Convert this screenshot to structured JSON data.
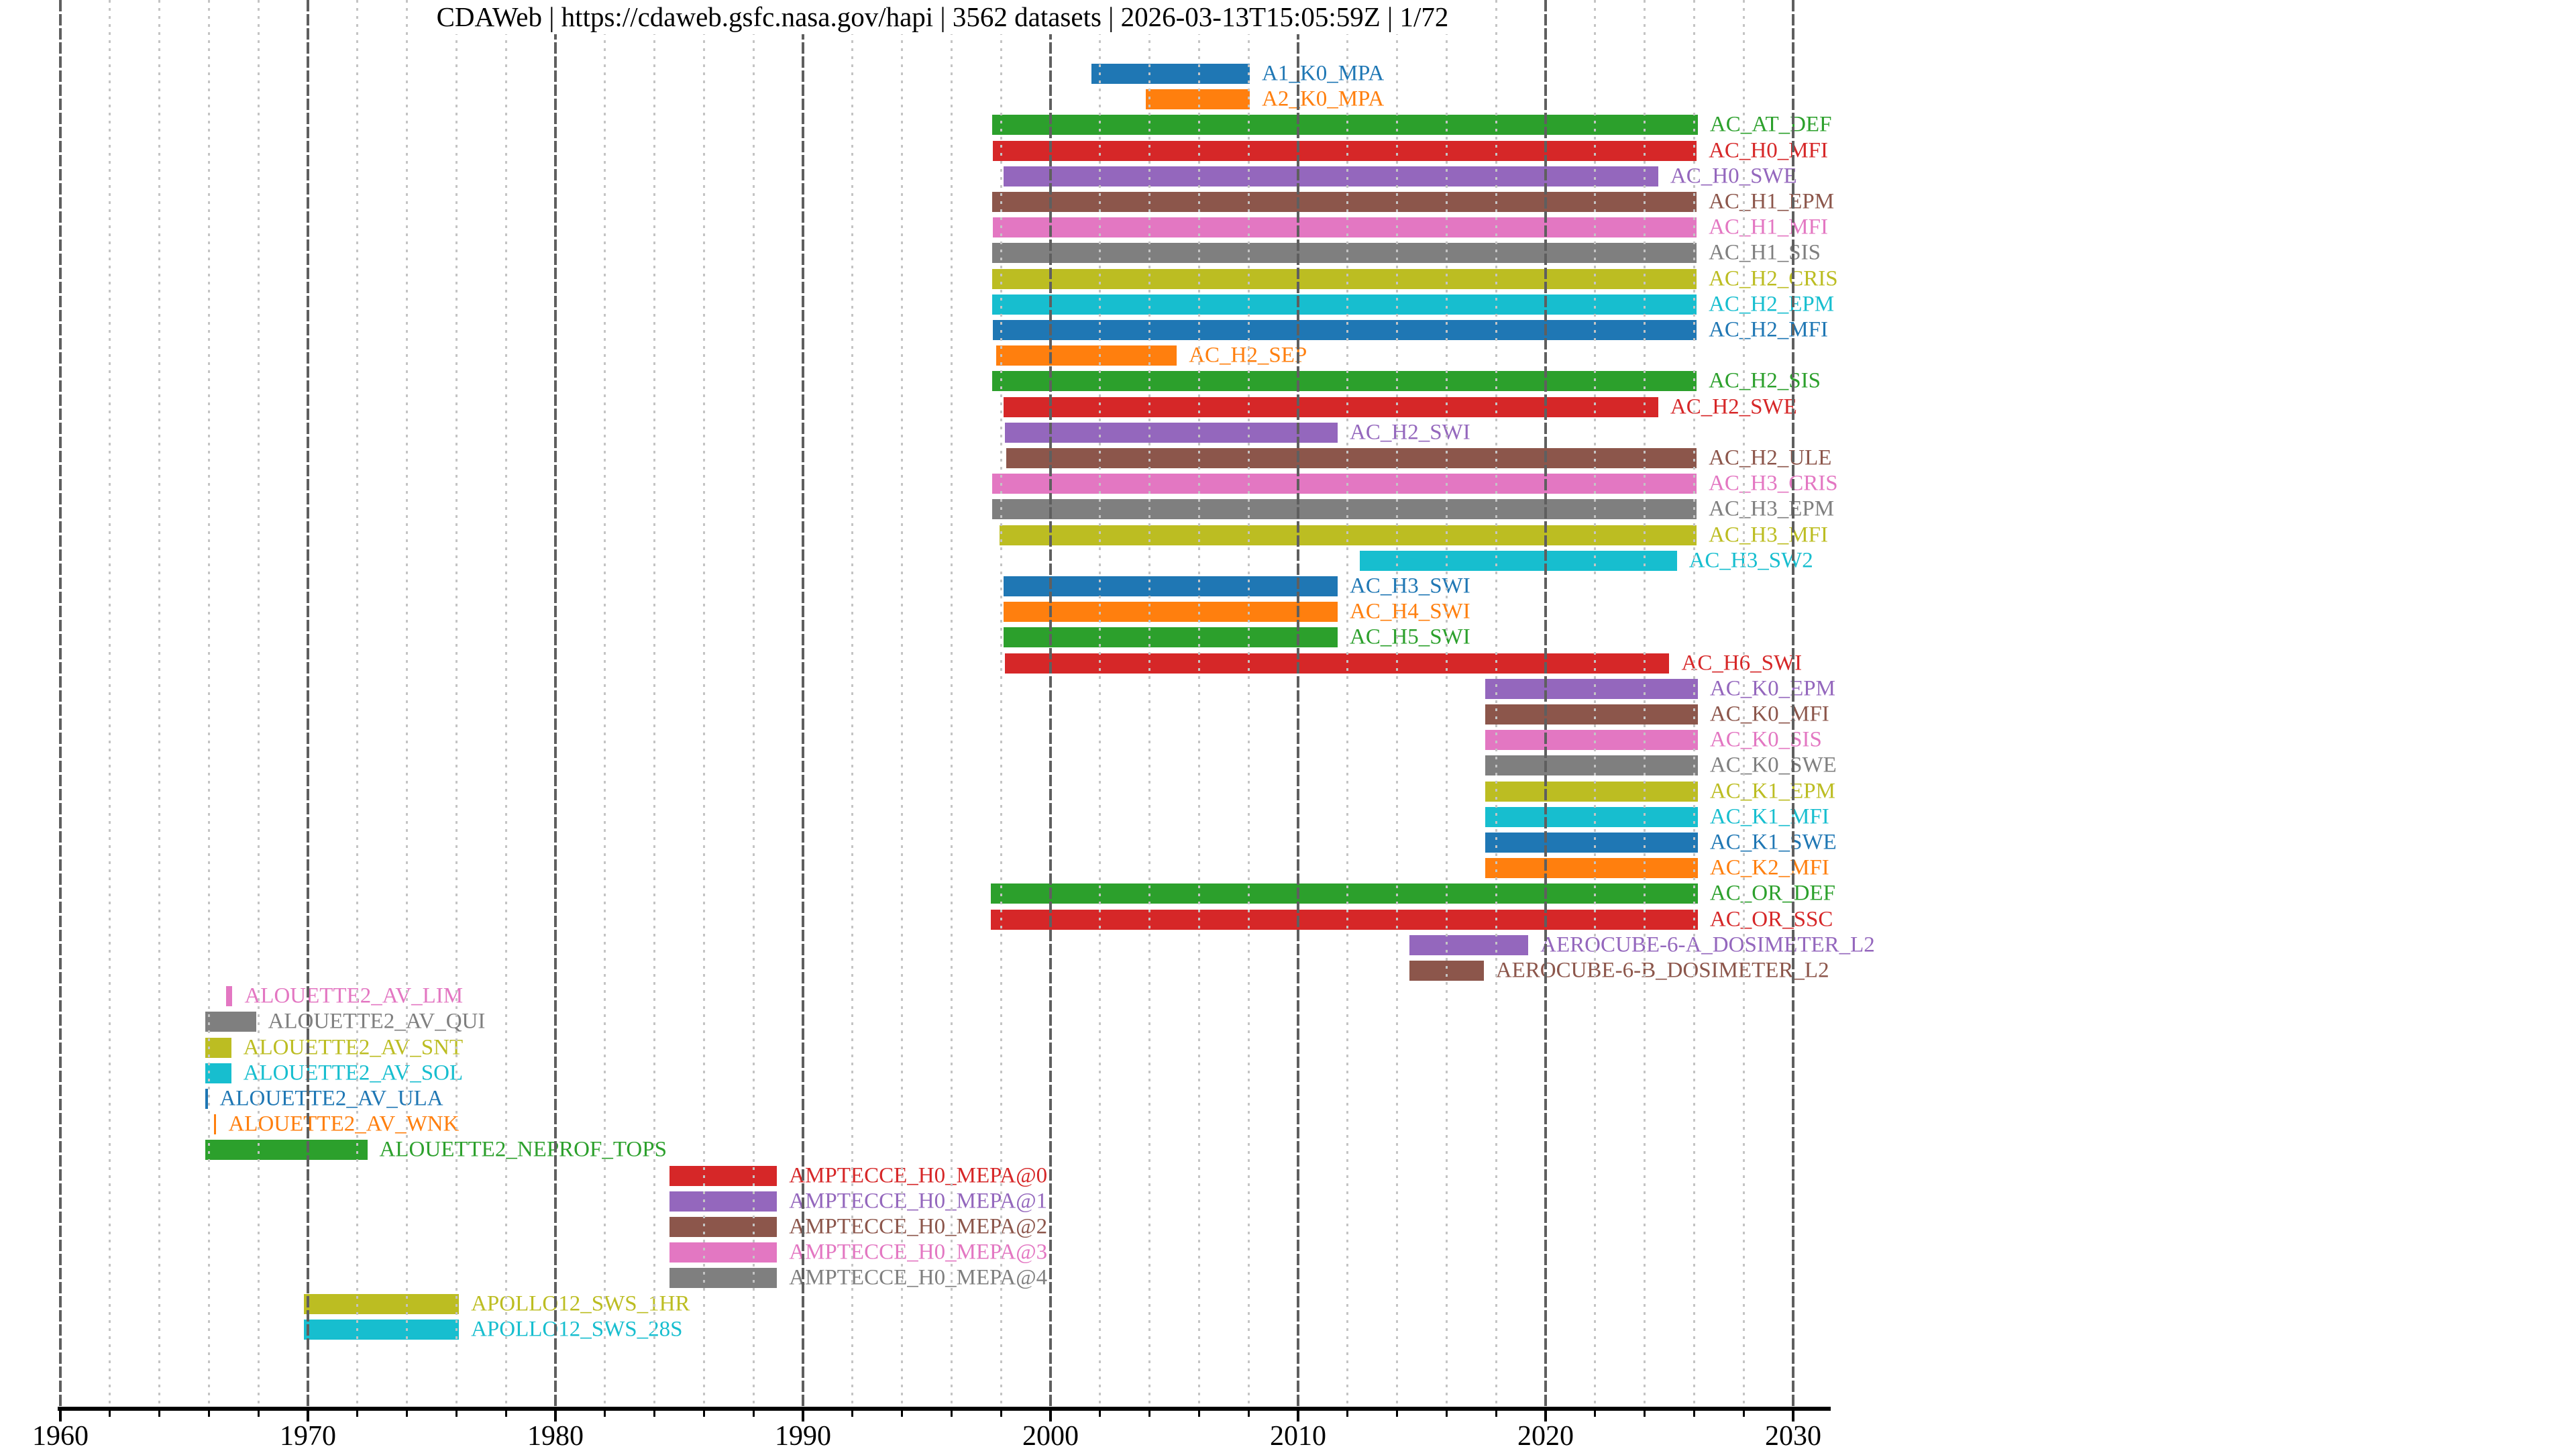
{
  "chart_data": {
    "type": "bar",
    "orientation": "horizontal-timeline",
    "title": "CDAWeb | https://cdaweb.gsfc.nasa.gov/hapi | 3562 datasets | 2026-03-13T15:05:59Z | 1/72",
    "xlabel": "",
    "ylabel": "",
    "xlim": [
      1960,
      2031.4
    ],
    "x_ticks": [
      1960,
      1970,
      1980,
      1990,
      2000,
      2010,
      2020,
      2030
    ],
    "minor_tick_interval_years": 2,
    "grid": "major-solid-dark, minor-dotted-light, drawn-over-bars",
    "legend": "none (labels drawn right of each bar in bar color)",
    "palette": {
      "blue": "#1f77b4",
      "orange": "#ff7f0e",
      "green": "#2ca02c",
      "red": "#d62728",
      "purple": "#9467bd",
      "brown": "#8c564b",
      "pink": "#e377c2",
      "gray": "#7f7f7f",
      "olive": "#bcbd22",
      "cyan": "#17becf"
    },
    "series": [
      {
        "name": "A1_K0_MPA",
        "color": "blue",
        "start": 2001.65,
        "end": 2008.05
      },
      {
        "name": "A2_K0_MPA",
        "color": "orange",
        "start": 2003.85,
        "end": 2008.05
      },
      {
        "name": "AC_AT_DEF",
        "color": "green",
        "start": 1997.65,
        "end": 2026.15
      },
      {
        "name": "AC_H0_MFI",
        "color": "red",
        "start": 1997.67,
        "end": 2026.1
      },
      {
        "name": "AC_H0_SWE",
        "color": "purple",
        "start": 1998.1,
        "end": 2024.55
      },
      {
        "name": "AC_H1_EPM",
        "color": "brown",
        "start": 1997.65,
        "end": 2026.1
      },
      {
        "name": "AC_H1_MFI",
        "color": "pink",
        "start": 1997.67,
        "end": 2026.1
      },
      {
        "name": "AC_H1_SIS",
        "color": "gray",
        "start": 1997.65,
        "end": 2026.1
      },
      {
        "name": "AC_H2_CRIS",
        "color": "olive",
        "start": 1997.65,
        "end": 2026.1
      },
      {
        "name": "AC_H2_EPM",
        "color": "cyan",
        "start": 1997.65,
        "end": 2026.1
      },
      {
        "name": "AC_H2_MFI",
        "color": "blue",
        "start": 1997.67,
        "end": 2026.1
      },
      {
        "name": "AC_H2_SEP",
        "color": "orange",
        "start": 1997.8,
        "end": 2005.1
      },
      {
        "name": "AC_H2_SIS",
        "color": "green",
        "start": 1997.65,
        "end": 2026.1
      },
      {
        "name": "AC_H2_SWE",
        "color": "red",
        "start": 1998.1,
        "end": 2024.55
      },
      {
        "name": "AC_H2_SWI",
        "color": "purple",
        "start": 1998.15,
        "end": 2011.6
      },
      {
        "name": "AC_H2_ULE",
        "color": "brown",
        "start": 1998.2,
        "end": 2026.1
      },
      {
        "name": "AC_H3_CRIS",
        "color": "pink",
        "start": 1997.65,
        "end": 2026.1
      },
      {
        "name": "AC_H3_EPM",
        "color": "gray",
        "start": 1997.65,
        "end": 2026.1
      },
      {
        "name": "AC_H3_MFI",
        "color": "olive",
        "start": 1997.95,
        "end": 2026.1
      },
      {
        "name": "AC_H3_SW2",
        "color": "cyan",
        "start": 2012.5,
        "end": 2025.3
      },
      {
        "name": "AC_H3_SWI",
        "color": "blue",
        "start": 1998.1,
        "end": 2011.6
      },
      {
        "name": "AC_H4_SWI",
        "color": "orange",
        "start": 1998.1,
        "end": 2011.6
      },
      {
        "name": "AC_H5_SWI",
        "color": "green",
        "start": 1998.1,
        "end": 2011.6
      },
      {
        "name": "AC_H6_SWI",
        "color": "red",
        "start": 1998.15,
        "end": 2025.0
      },
      {
        "name": "AC_K0_EPM",
        "color": "purple",
        "start": 2017.55,
        "end": 2026.15
      },
      {
        "name": "AC_K0_MFI",
        "color": "brown",
        "start": 2017.55,
        "end": 2026.15
      },
      {
        "name": "AC_K0_SIS",
        "color": "pink",
        "start": 2017.55,
        "end": 2026.15
      },
      {
        "name": "AC_K0_SWE",
        "color": "gray",
        "start": 2017.55,
        "end": 2026.15
      },
      {
        "name": "AC_K1_EPM",
        "color": "olive",
        "start": 2017.55,
        "end": 2026.15
      },
      {
        "name": "AC_K1_MFI",
        "color": "cyan",
        "start": 2017.55,
        "end": 2026.15
      },
      {
        "name": "AC_K1_SWE",
        "color": "blue",
        "start": 2017.55,
        "end": 2026.15
      },
      {
        "name": "AC_K2_MFI",
        "color": "orange",
        "start": 2017.55,
        "end": 2026.15
      },
      {
        "name": "AC_OR_DEF",
        "color": "green",
        "start": 1997.6,
        "end": 2026.15
      },
      {
        "name": "AC_OR_SSC",
        "color": "red",
        "start": 1997.6,
        "end": 2026.15
      },
      {
        "name": "AEROCUBE-6-A_DOSIMETER_L2",
        "color": "purple",
        "start": 2014.5,
        "end": 2019.3
      },
      {
        "name": "AEROCUBE-6-B_DOSIMETER_L2",
        "color": "brown",
        "start": 2014.5,
        "end": 2017.5
      },
      {
        "name": "ALOUETTE2_AV_LIM",
        "color": "pink",
        "start": 1966.7,
        "end": 1966.95
      },
      {
        "name": "ALOUETTE2_AV_QUI",
        "color": "gray",
        "start": 1965.85,
        "end": 1967.9
      },
      {
        "name": "ALOUETTE2_AV_SNT",
        "color": "olive",
        "start": 1965.85,
        "end": 1966.9
      },
      {
        "name": "ALOUETTE2_AV_SOL",
        "color": "cyan",
        "start": 1965.85,
        "end": 1966.9
      },
      {
        "name": "ALOUETTE2_AV_ULA",
        "color": "blue",
        "start": 1965.85,
        "end": 1965.95
      },
      {
        "name": "ALOUETTE2_AV_WNK",
        "color": "orange",
        "start": 1966.2,
        "end": 1966.3
      },
      {
        "name": "ALOUETTE2_NEPROF_TOPS",
        "color": "green",
        "start": 1965.85,
        "end": 1972.4
      },
      {
        "name": "AMPTECCE_H0_MEPA@0",
        "color": "red",
        "start": 1984.6,
        "end": 1988.95
      },
      {
        "name": "AMPTECCE_H0_MEPA@1",
        "color": "purple",
        "start": 1984.6,
        "end": 1988.95
      },
      {
        "name": "AMPTECCE_H0_MEPA@2",
        "color": "brown",
        "start": 1984.6,
        "end": 1988.95
      },
      {
        "name": "AMPTECCE_H0_MEPA@3",
        "color": "pink",
        "start": 1984.6,
        "end": 1988.95
      },
      {
        "name": "AMPTECCE_H0_MEPA@4",
        "color": "gray",
        "start": 1984.6,
        "end": 1988.95
      },
      {
        "name": "APOLLO12_SWS_1HR",
        "color": "olive",
        "start": 1969.85,
        "end": 1976.1
      },
      {
        "name": "APOLLO12_SWS_28S",
        "color": "cyan",
        "start": 1969.85,
        "end": 1976.1
      }
    ]
  }
}
